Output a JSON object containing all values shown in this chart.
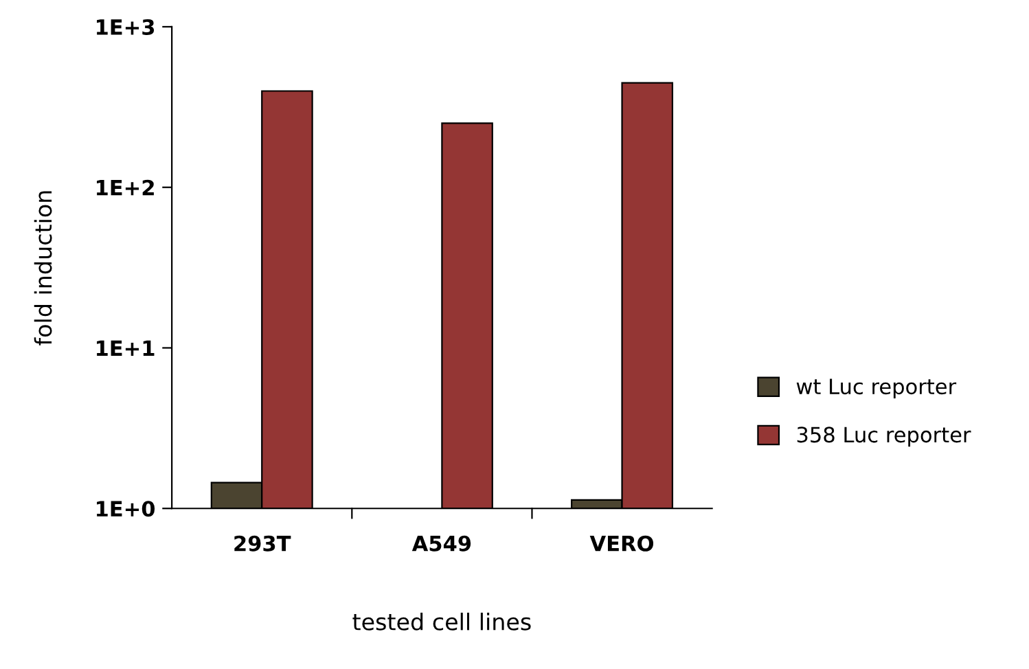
{
  "chart_data": {
    "type": "bar",
    "xlabel": "tested cell lines",
    "ylabel": "fold induction",
    "categories": [
      "293T",
      "A549",
      "VERO"
    ],
    "series": [
      {
        "name": "wt Luc reporter",
        "color": "#4b4430",
        "values": [
          1.45,
          null,
          1.13
        ]
      },
      {
        "name": "358 Luc reporter",
        "color": "#943634",
        "values": [
          398,
          251,
          447
        ]
      }
    ],
    "log": true,
    "ylim": [
      1,
      1000
    ],
    "yticks": [
      {
        "value": 1,
        "label": "1E+0"
      },
      {
        "value": 10,
        "label": "1E+1"
      },
      {
        "value": 100,
        "label": "1E+2"
      },
      {
        "value": 1000,
        "label": "1E+3"
      }
    ],
    "grid": false,
    "legend": "right"
  }
}
